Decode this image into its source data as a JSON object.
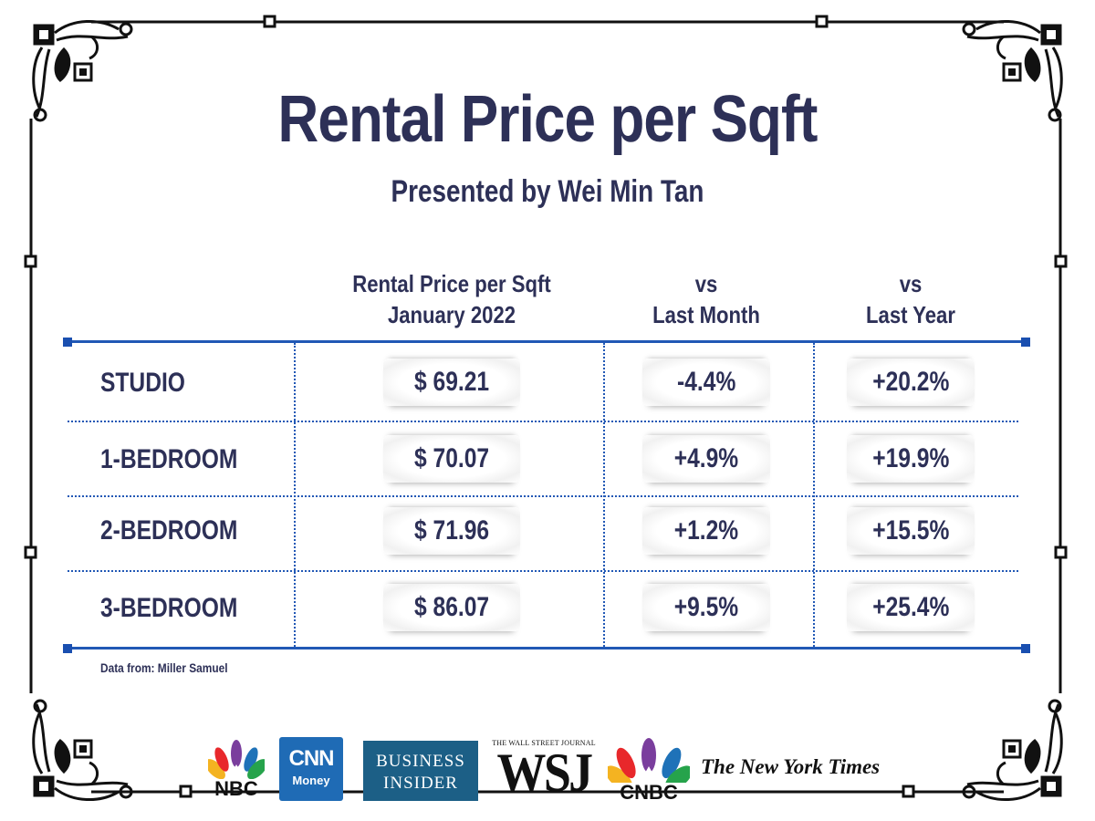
{
  "title": "Rental Price per Sqft",
  "subtitle": "Presented by Wei Min Tan",
  "source": "Data from: Miller Samuel",
  "chart_data": {
    "type": "table",
    "columns": [
      {
        "line1": "Rental Price per Sqft",
        "line2": "January 2022"
      },
      {
        "line1": "vs",
        "line2": "Last Month"
      },
      {
        "line1": "vs",
        "line2": "Last Year"
      }
    ],
    "rows": [
      {
        "label": "STUDIO",
        "price": "$ 69.21",
        "vs_month": "-4.4%",
        "vs_year": "+20.2%"
      },
      {
        "label": "1-BEDROOM",
        "price": "$ 70.07",
        "vs_month": "+4.9%",
        "vs_year": "+19.9%"
      },
      {
        "label": "2-BEDROOM",
        "price": "$ 71.96",
        "vs_month": "+1.2%",
        "vs_year": "+15.5%"
      },
      {
        "label": "3-BEDROOM",
        "price": "$ 86.07",
        "vs_month": "+9.5%",
        "vs_year": "+25.4%"
      }
    ]
  },
  "logos": {
    "nbc": "NBC",
    "cnn_main": "CNN",
    "cnn_sub": "Money",
    "bi_line1": "BUSINESS",
    "bi_line2": "INSIDER",
    "wsj_top": "THE WALL STREET JOURNAL",
    "wsj_main": "WSJ",
    "cnbc": "CNBC",
    "nyt": "The New York Times"
  },
  "colors": {
    "text": "#2d3057",
    "rule": "#2158b5",
    "frame": "#111111",
    "cnn": "#1f6bb5",
    "business_insider": "#1c5f86"
  }
}
